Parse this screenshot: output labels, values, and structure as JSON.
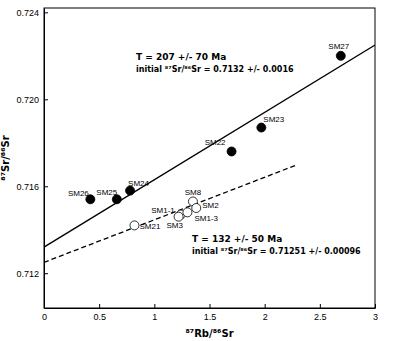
{
  "chart_data": {
    "type": "scatter",
    "xlabel": "⁸⁷Rb/⁸⁶Sr",
    "ylabel": "⁸⁷Sr/⁸⁶Sr",
    "xlim": [
      0,
      3
    ],
    "ylim": [
      0.7104,
      0.7242
    ],
    "xticks": [
      0,
      0.5,
      1,
      1.5,
      2,
      2.5,
      3
    ],
    "yticks": [
      0.712,
      0.716,
      {
        "value": 0.72,
        "label": "0.720"
      },
      0.724
    ],
    "series": [
      {
        "type": "scatter",
        "marker": "filled-circle",
        "color": "#000000",
        "labels": [
          "SM26",
          "SM25",
          "SM24",
          "SM22",
          "SM23",
          "SM27"
        ],
        "x": [
          0.42,
          0.66,
          0.78,
          1.7,
          1.97,
          2.69
        ],
        "values": [
          0.7154,
          0.7154,
          0.7158,
          0.7176,
          0.7187,
          0.722
        ]
      },
      {
        "type": "scatter",
        "marker": "open-circle",
        "color": "#000000",
        "labels": [
          "SM21",
          "SM1-1",
          "SM3",
          "SM1-3",
          "SM8",
          "SM2"
        ],
        "x": [
          0.82,
          1.24,
          1.22,
          1.3,
          1.35,
          1.38
        ],
        "values": [
          0.7142,
          0.7147,
          0.7146,
          0.7148,
          0.7153,
          0.715
        ]
      },
      {
        "type": "line",
        "line_style": "solid",
        "color": "#000000",
        "x": [
          0,
          3
        ],
        "values": [
          0.7132,
          0.7225
        ]
      },
      {
        "type": "line",
        "line_style": "dashed",
        "color": "#000000",
        "x": [
          0,
          2.3
        ],
        "values": [
          0.7125,
          0.717
        ]
      }
    ],
    "annotations": [
      {
        "text": "T = 207 +/- 70 Ma"
      },
      {
        "text": "initial ⁸⁷Sr/⁸⁶Sr = 0.7132 +/- 0.0016"
      },
      {
        "text": "T = 132 +/- 50 Ma"
      },
      {
        "text": "initial ⁸⁷Sr/⁸⁶Sr = 0.71251 +/- 0.00096"
      }
    ]
  }
}
